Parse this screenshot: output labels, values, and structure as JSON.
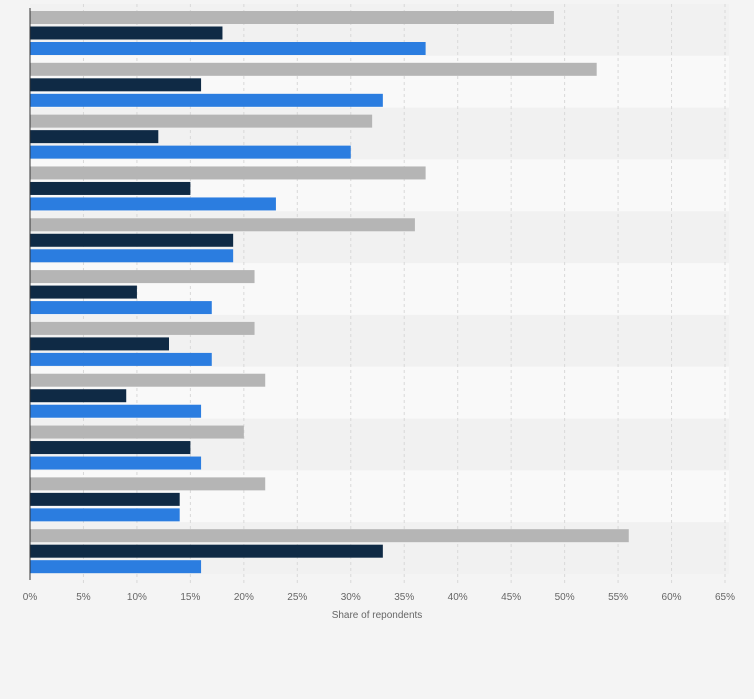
{
  "chart_data": {
    "type": "bar",
    "orientation": "horizontal",
    "categories": [
      "",
      "",
      "",
      "",
      "",
      "",
      "",
      "",
      "",
      "",
      ""
    ],
    "series": [
      {
        "values": [
          49,
          53,
          32,
          37,
          36,
          21,
          21,
          22,
          20,
          22,
          56
        ],
        "color": "#b5b5b5"
      },
      {
        "values": [
          18,
          16,
          12,
          15,
          19,
          10,
          13,
          9,
          15,
          14,
          33
        ],
        "color": "#0f2a45"
      },
      {
        "values": [
          37,
          33,
          30,
          23,
          19,
          17,
          17,
          16,
          16,
          14,
          16
        ],
        "color": "#2b7de0"
      }
    ],
    "xlabel": "Share of repondents",
    "xlim": [
      0,
      65
    ],
    "xticks": [
      "0%",
      "5%",
      "10%",
      "15%",
      "20%",
      "25%",
      "30%",
      "35%",
      "40%",
      "45%",
      "50%",
      "55%",
      "60%",
      "65%"
    ],
    "grid": true,
    "legend": "none"
  }
}
